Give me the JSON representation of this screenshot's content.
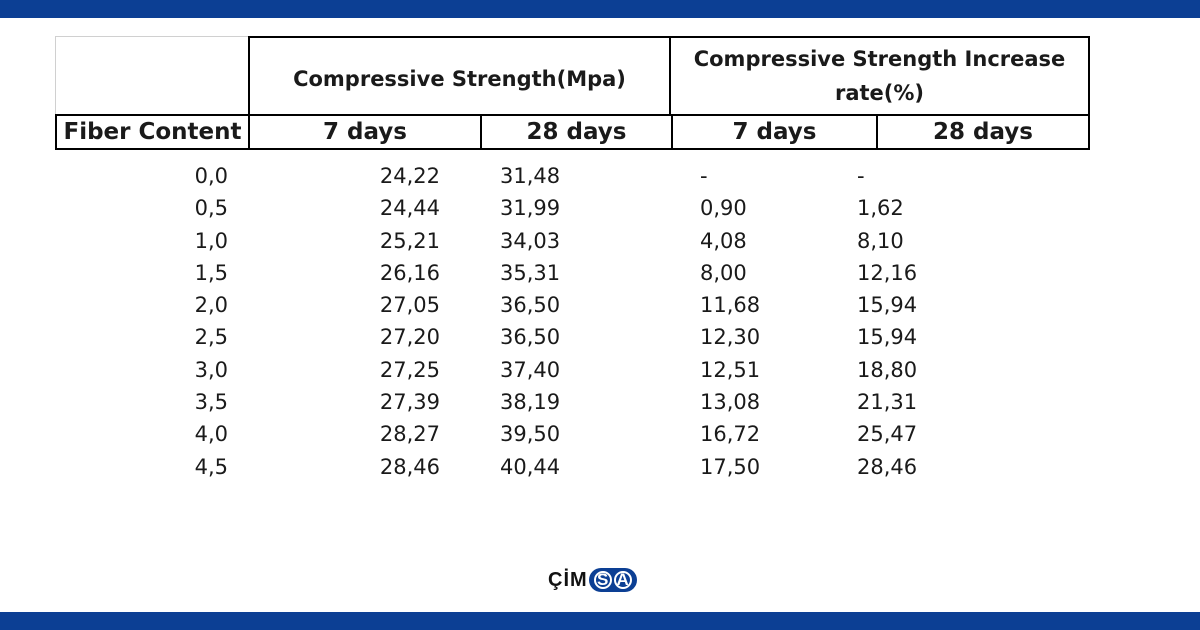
{
  "header": {
    "group1": "Compressive Strength(Mpa)",
    "group2_line1": "Compressive Strength Increase",
    "group2_line2": "rate(%)",
    "col_fiber": "Fiber Content",
    "col_7a": "7 days",
    "col_28a": "28 days",
    "col_7b": "7 days",
    "col_28b": "28 days"
  },
  "rows": [
    {
      "fiber": "0,0",
      "s7": "24,22",
      "s28": "31,48",
      "r7": "-",
      "r28": "-"
    },
    {
      "fiber": "0,5",
      "s7": "24,44",
      "s28": "31,99",
      "r7": "0,90",
      "r28": "1,62"
    },
    {
      "fiber": "1,0",
      "s7": "25,21",
      "s28": "34,03",
      "r7": "4,08",
      "r28": "8,10"
    },
    {
      "fiber": "1,5",
      "s7": "26,16",
      "s28": "35,31",
      "r7": "8,00",
      "r28": "12,16"
    },
    {
      "fiber": "2,0",
      "s7": "27,05",
      "s28": "36,50",
      "r7": "11,68",
      "r28": "15,94"
    },
    {
      "fiber": "2,5",
      "s7": "27,20",
      "s28": "36,50",
      "r7": "12,30",
      "r28": "15,94"
    },
    {
      "fiber": "3,0",
      "s7": "27,25",
      "s28": "37,40",
      "r7": "12,51",
      "r28": "18,80"
    },
    {
      "fiber": "3,5",
      "s7": "27,39",
      "s28": "38,19",
      "r7": "13,08",
      "r28": "21,31"
    },
    {
      "fiber": "4,0",
      "s7": "28,27",
      "s28": "39,50",
      "r7": "16,72",
      "r28": "25,47"
    },
    {
      "fiber": "4,5",
      "s7": "28,46",
      "s28": "40,44",
      "r7": "17,50",
      "r28": "28,46"
    }
  ],
  "logo": {
    "text": "ÇİM",
    "badge_letters": [
      "S",
      "A"
    ]
  },
  "colors": {
    "brand_blue": "#0c3f94"
  }
}
